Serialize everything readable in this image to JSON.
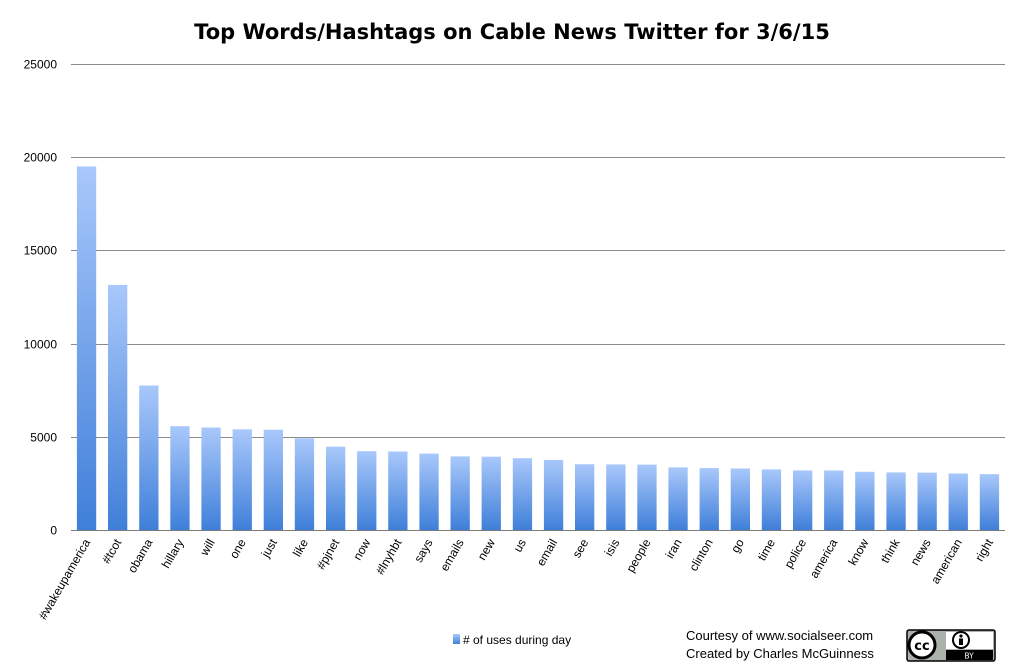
{
  "chart_data": {
    "type": "bar",
    "title": "Top Words/Hashtags on Cable News Twitter for 3/6/15",
    "xlabel": "",
    "ylabel": "",
    "ylim": [
      0,
      25000
    ],
    "yticks": [
      0,
      5000,
      10000,
      15000,
      20000,
      25000
    ],
    "grid": true,
    "legend_position": "bottom",
    "categories": [
      "#wakeupamerica",
      "#tcot",
      "obama",
      "hillary",
      "will",
      "one",
      "just",
      "like",
      "#pjnet",
      "now",
      "#lnyhbt",
      "says",
      "emails",
      "new",
      "us",
      "email",
      "see",
      "isis",
      "people",
      "iran",
      "clinton",
      "go",
      "time",
      "police",
      "america",
      "know",
      "think",
      "news",
      "american",
      "right"
    ],
    "series": [
      {
        "name": "# of uses during day",
        "values": [
          19500,
          13150,
          7750,
          5570,
          5500,
          5400,
          5380,
          4920,
          4470,
          4230,
          4210,
          4100,
          3950,
          3930,
          3850,
          3760,
          3530,
          3520,
          3510,
          3360,
          3320,
          3300,
          3250,
          3200,
          3190,
          3120,
          3090,
          3080,
          3030,
          3000
        ]
      }
    ],
    "colors": {
      "bar_light": "#a9c8fb",
      "bar_dark": "#3f7fd9"
    }
  },
  "credits": {
    "line1": "Courtesy of www.socialseer.com",
    "line2": "Created by Charles McGuinness"
  },
  "license_badge": {
    "icons": [
      "cc-icon",
      "attribution-person-icon"
    ],
    "text": "BY"
  }
}
